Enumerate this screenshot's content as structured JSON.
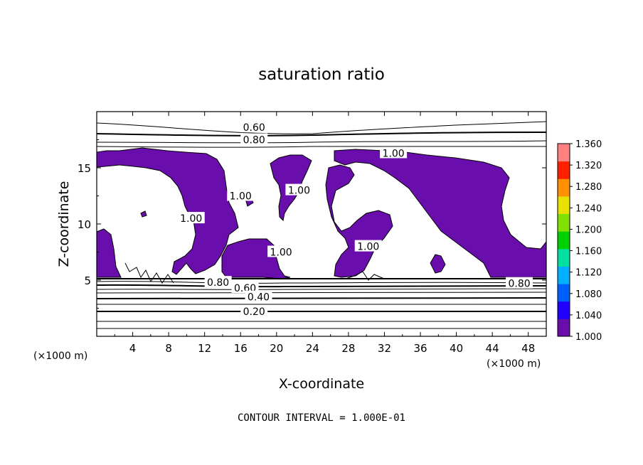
{
  "chart_data": {
    "type": "heatmap",
    "title": "saturation ratio",
    "xlabel": "X-coordinate",
    "ylabel": "Z-coordinate",
    "x_unit": "(×1000 m)",
    "z_unit": "(×1000 m)",
    "xlim": [
      0,
      50
    ],
    "ylim": [
      0,
      20
    ],
    "x_ticks": [
      "4",
      "8",
      "12",
      "16",
      "20",
      "24",
      "28",
      "32",
      "36",
      "40",
      "44",
      "48"
    ],
    "y_ticks": [
      "5",
      "10",
      "15"
    ],
    "contour_interval_label": "CONTOUR INTERVAL = 1.000E-01",
    "contour_labels": [
      {
        "text": "0.60",
        "x": 17.5,
        "z": 18.6
      },
      {
        "text": "0.80",
        "x": 17.5,
        "z": 17.5
      },
      {
        "text": "1.00",
        "x": 33.0,
        "z": 16.3
      },
      {
        "text": "1.00",
        "x": 16.0,
        "z": 12.5
      },
      {
        "text": "1.00",
        "x": 22.5,
        "z": 13.0
      },
      {
        "text": "1.00",
        "x": 10.5,
        "z": 10.5
      },
      {
        "text": "1.00",
        "x": 20.5,
        "z": 7.5
      },
      {
        "text": "1.00",
        "x": 30.2,
        "z": 8.0
      },
      {
        "text": "0.80",
        "x": 13.5,
        "z": 4.8
      },
      {
        "text": "0.60",
        "x": 16.5,
        "z": 4.3
      },
      {
        "text": "0.40",
        "x": 18.0,
        "z": 3.5
      },
      {
        "text": "0.20",
        "x": 17.5,
        "z": 2.2
      },
      {
        "text": "0.80",
        "x": 47.0,
        "z": 4.7
      }
    ],
    "colorbar": {
      "min": 1.0,
      "max": 1.36,
      "ticks": [
        "1.360",
        "1.320",
        "1.280",
        "1.240",
        "1.200",
        "1.160",
        "1.120",
        "1.080",
        "1.040",
        "1.000"
      ],
      "colors": [
        "#6a0dad",
        "#2000ff",
        "#0060ff",
        "#00b0ff",
        "#00e0a0",
        "#00d000",
        "#80e000",
        "#e8e000",
        "#ff9000",
        "#ff2000",
        "#ff8080"
      ]
    },
    "fill_color": "#6a0dad"
  }
}
